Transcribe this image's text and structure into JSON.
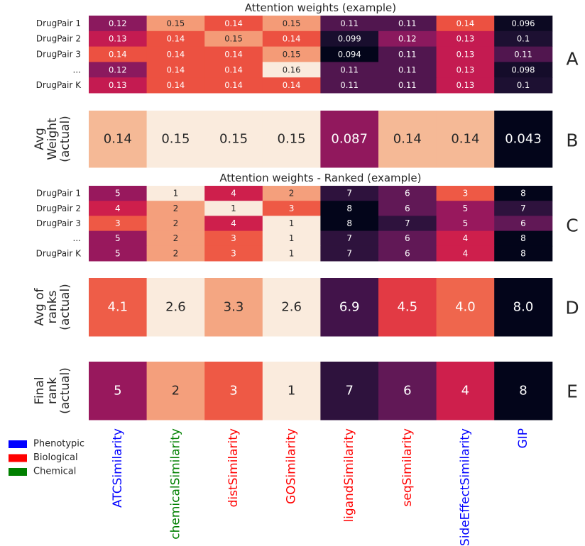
{
  "columns": [
    {
      "name": "ATCSimilarity",
      "group": "Phenotypic"
    },
    {
      "name": "chemicalSimilarity",
      "group": "Chemical"
    },
    {
      "name": "distSimilarity",
      "group": "Biological"
    },
    {
      "name": "GOSimilarity",
      "group": "Biological"
    },
    {
      "name": "ligandSimilarity",
      "group": "Biological"
    },
    {
      "name": "seqSimilarity",
      "group": "Biological"
    },
    {
      "name": "SideEffectSimilarity",
      "group": "Phenotypic"
    },
    {
      "name": "GIP",
      "group": "Phenotypic"
    }
  ],
  "legend": [
    {
      "label": "Phenotypic",
      "color": "#0000ff"
    },
    {
      "label": "Biological",
      "color": "#ff0000"
    },
    {
      "label": "Chemical",
      "color": "#008000"
    }
  ],
  "chart_data": [
    {
      "type": "heatmap",
      "panel_letter": "A",
      "title": "Attention weights (example)",
      "row_labels": [
        "DrugPair 1",
        "DrugPair 2",
        "DrugPair 3",
        "...",
        "DrugPair K"
      ],
      "values": [
        [
          0.12,
          0.15,
          0.14,
          0.15,
          0.11,
          0.11,
          0.14,
          0.096
        ],
        [
          0.13,
          0.14,
          0.15,
          0.14,
          0.099,
          0.12,
          0.13,
          0.1
        ],
        [
          0.14,
          0.14,
          0.14,
          0.15,
          0.094,
          0.11,
          0.13,
          0.11
        ],
        [
          0.12,
          0.14,
          0.14,
          0.16,
          0.11,
          0.11,
          0.13,
          0.098
        ],
        [
          0.13,
          0.14,
          0.14,
          0.14,
          0.11,
          0.11,
          0.13,
          0.1
        ]
      ],
      "value_text": [
        [
          "0.12",
          "0.15",
          "0.14",
          "0.15",
          "0.11",
          "0.11",
          "0.14",
          "0.096"
        ],
        [
          "0.13",
          "0.14",
          "0.15",
          "0.14",
          "0.099",
          "0.12",
          "0.13",
          "0.1"
        ],
        [
          "0.14",
          "0.14",
          "0.14",
          "0.15",
          "0.094",
          "0.11",
          "0.13",
          "0.11"
        ],
        [
          "0.12",
          "0.14",
          "0.14",
          "0.16",
          "0.11",
          "0.11",
          "0.13",
          "0.098"
        ],
        [
          "0.13",
          "0.14",
          "0.14",
          "0.14",
          "0.11",
          "0.11",
          "0.13",
          "0.1"
        ]
      ],
      "color_range": [
        0.094,
        0.16
      ]
    },
    {
      "type": "heatmap",
      "panel_letter": "B",
      "ylabel_lines": [
        "Avg",
        "Weight",
        "(actual)"
      ],
      "values": [
        [
          0.14,
          0.15,
          0.15,
          0.15,
          0.087,
          0.14,
          0.14,
          0.043
        ]
      ],
      "value_text": [
        [
          "0.14",
          "0.15",
          "0.15",
          "0.15",
          "0.087",
          "0.14",
          "0.14",
          "0.043"
        ]
      ],
      "color_range": [
        0.043,
        0.15
      ]
    },
    {
      "type": "heatmap",
      "panel_letter": "C",
      "title": "Attention weights - Ranked (example)",
      "row_labels": [
        "DrugPair 1",
        "DrugPair 2",
        "DrugPair 3",
        "...",
        "DrugPair K"
      ],
      "values": [
        [
          5,
          1,
          4,
          2,
          7,
          6,
          3,
          8
        ],
        [
          4,
          2,
          1,
          3,
          8,
          6,
          5,
          7
        ],
        [
          3,
          2,
          4,
          1,
          8,
          7,
          5,
          6
        ],
        [
          5,
          2,
          3,
          1,
          7,
          6,
          4,
          8
        ],
        [
          5,
          2,
          3,
          1,
          7,
          6,
          4,
          8
        ]
      ],
      "value_text": [
        [
          "5",
          "1",
          "4",
          "2",
          "7",
          "6",
          "3",
          "8"
        ],
        [
          "4",
          "2",
          "1",
          "3",
          "8",
          "6",
          "5",
          "7"
        ],
        [
          "3",
          "2",
          "4",
          "1",
          "8",
          "7",
          "5",
          "6"
        ],
        [
          "5",
          "2",
          "3",
          "1",
          "7",
          "6",
          "4",
          "8"
        ],
        [
          "5",
          "2",
          "3",
          "1",
          "7",
          "6",
          "4",
          "8"
        ]
      ],
      "color_range": [
        1,
        8
      ],
      "reversed": true
    },
    {
      "type": "heatmap",
      "panel_letter": "D",
      "ylabel_lines": [
        "Avg of",
        "ranks",
        "(actual)"
      ],
      "values": [
        [
          4.1,
          2.6,
          3.3,
          2.6,
          6.9,
          4.5,
          4.0,
          8.0
        ]
      ],
      "value_text": [
        [
          "4.1",
          "2.6",
          "3.3",
          "2.6",
          "6.9",
          "4.5",
          "4.0",
          "8.0"
        ]
      ],
      "color_range": [
        2.6,
        8.0
      ],
      "reversed": true
    },
    {
      "type": "heatmap",
      "panel_letter": "E",
      "ylabel_lines": [
        "Final",
        "rank",
        "(actual)"
      ],
      "values": [
        [
          5,
          2,
          3,
          1,
          7,
          6,
          4,
          8
        ]
      ],
      "value_text": [
        [
          "5",
          "2",
          "3",
          "1",
          "7",
          "6",
          "4",
          "8"
        ]
      ],
      "color_range": [
        1,
        8
      ],
      "reversed": true
    }
  ]
}
